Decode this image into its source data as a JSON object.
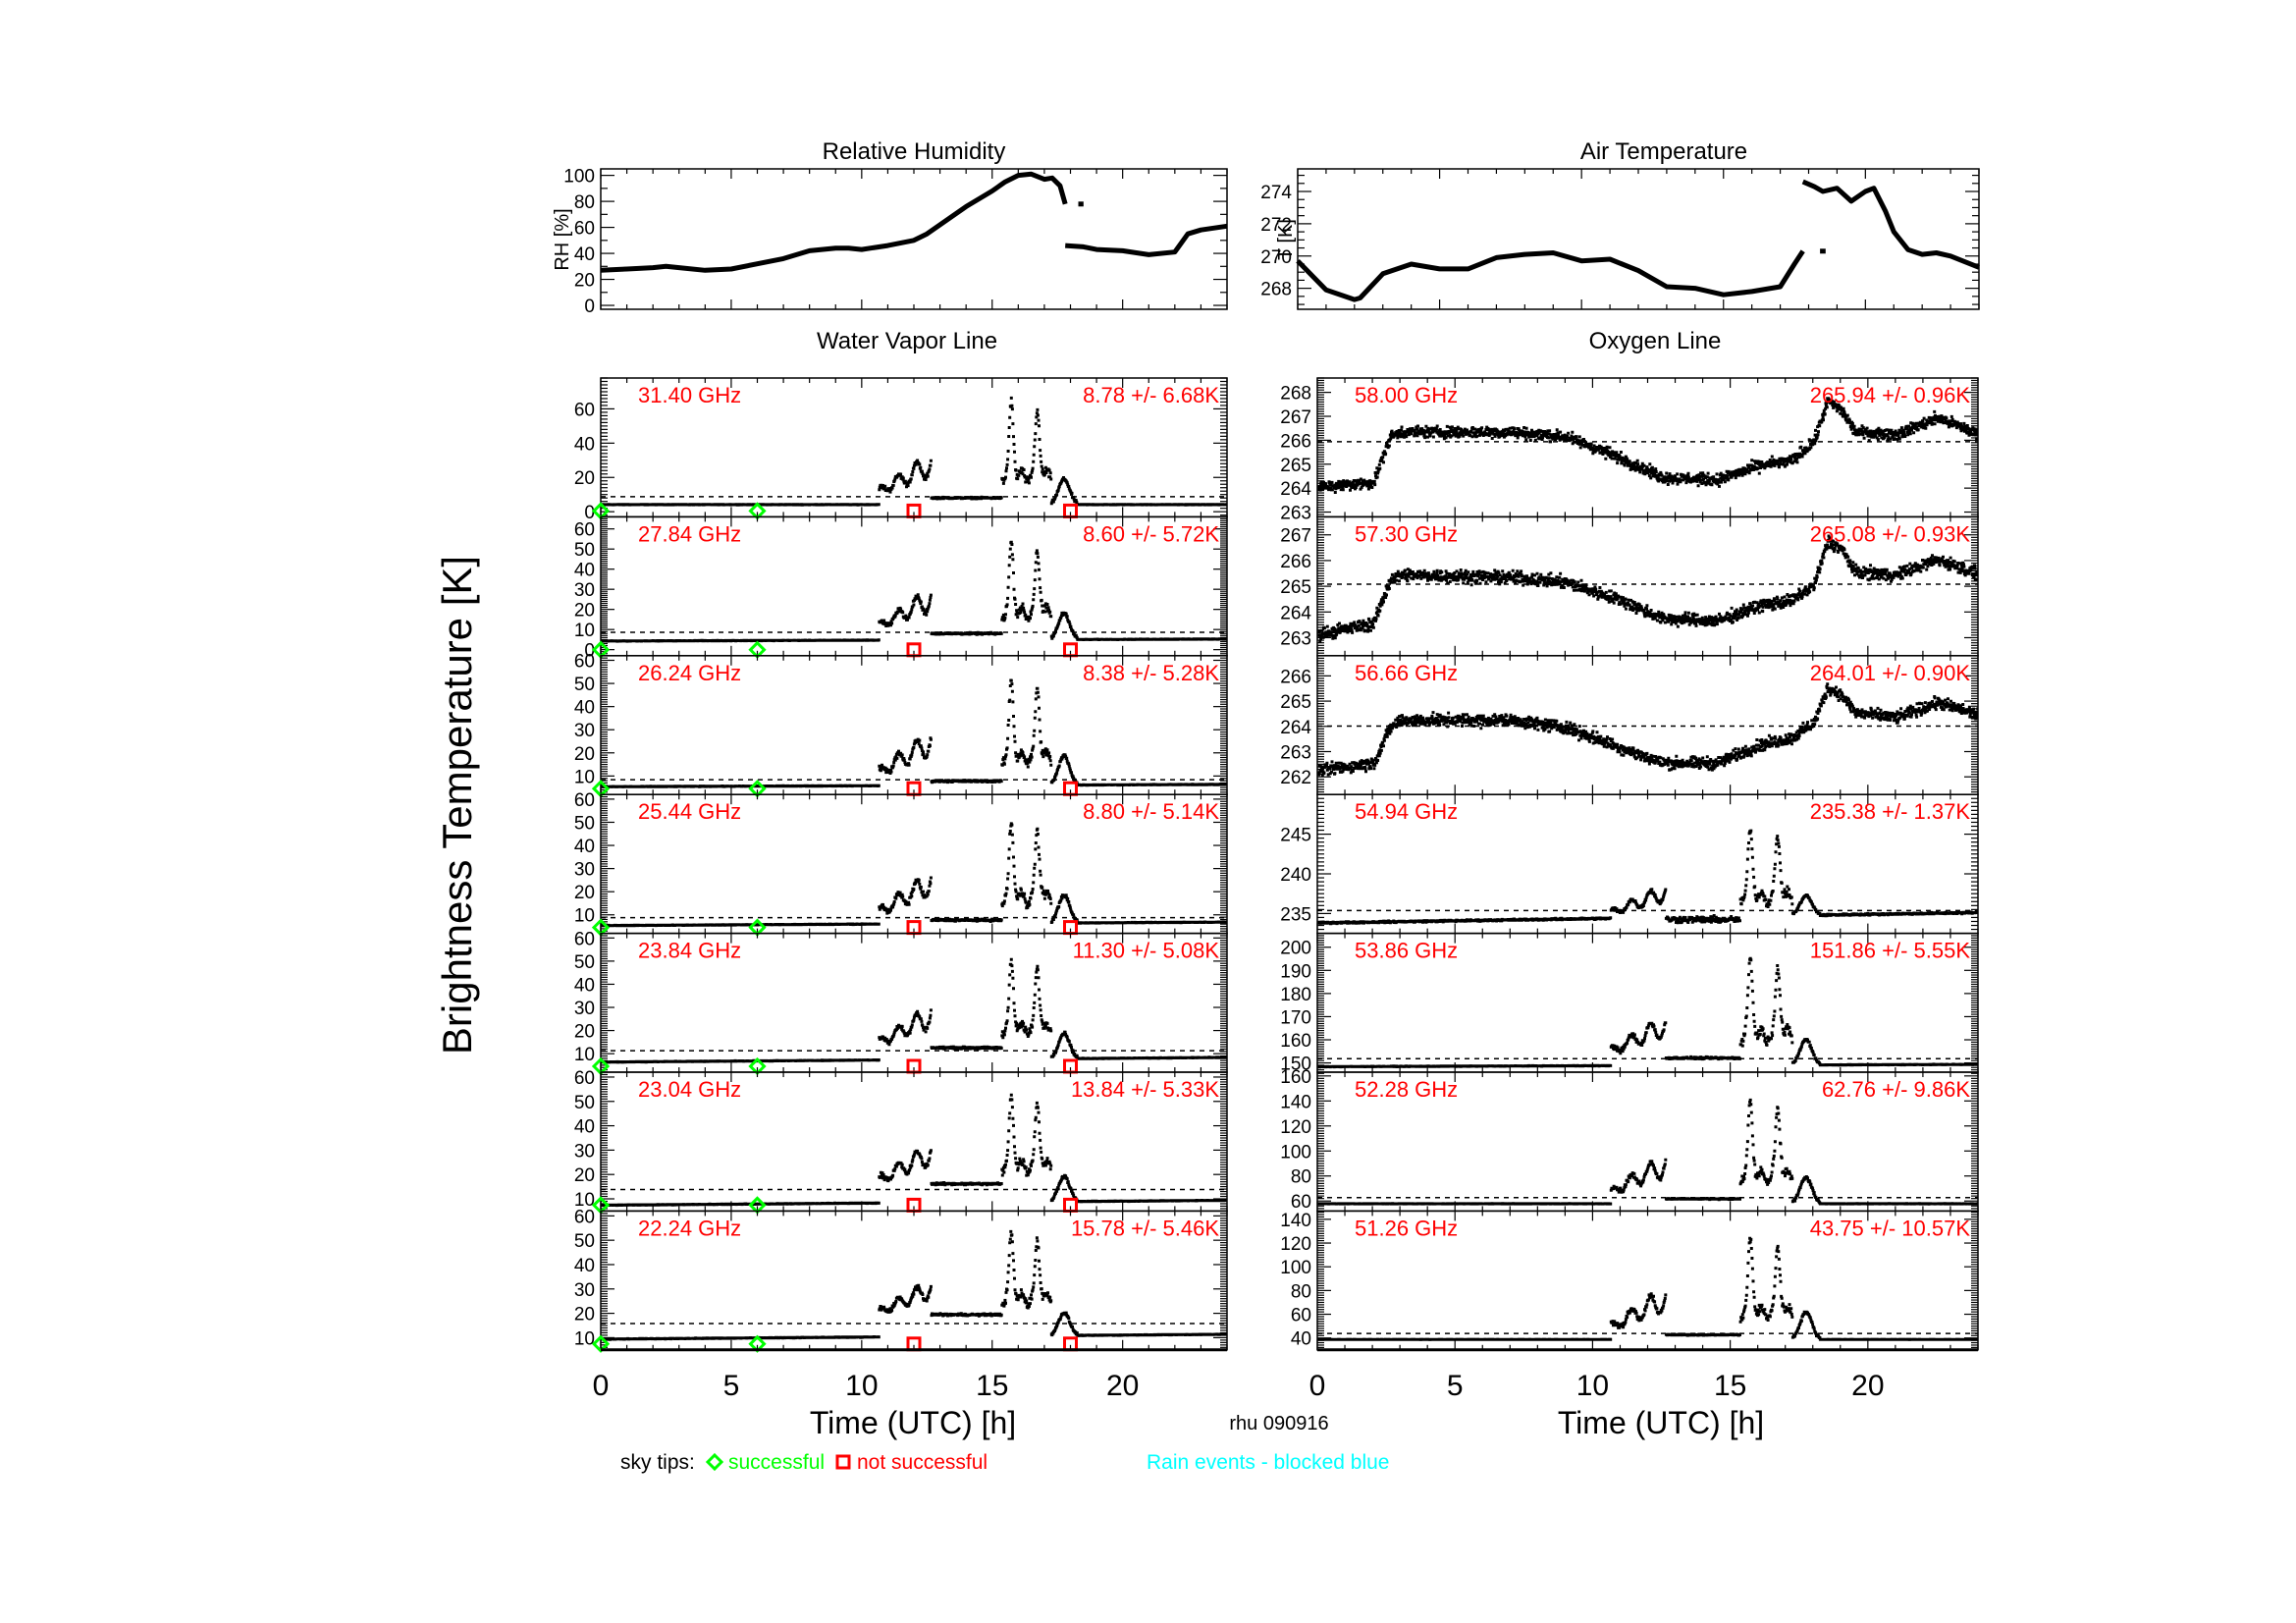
{
  "figure": {
    "ylabel_main": "Brightness Temperature [K]",
    "station_date": "rhu 090916",
    "legend": {
      "prefix": "sky tips:",
      "successful_label": "successful",
      "not_successful_label": "not successful",
      "rain_label": "Rain events - blocked blue"
    },
    "colors": {
      "annotation": "#ff0000",
      "successful": "#00ff00",
      "not_successful": "#ff0000",
      "rain": "#00ffff",
      "data": "#000000"
    }
  },
  "chart_data": [
    {
      "id": "rh",
      "type": "line",
      "title": "Relative Humidity",
      "ylabel": "RH [%]",
      "xlabel": "",
      "xlim": [
        0,
        24
      ],
      "ylim": [
        -3,
        105
      ],
      "yticks": [
        0,
        20,
        40,
        60,
        80,
        100
      ],
      "x": [
        0,
        1,
        2,
        2.5,
        3,
        4,
        5,
        6,
        7,
        8,
        9,
        9.5,
        10,
        11,
        12,
        12.5,
        13,
        14,
        15,
        15.5,
        16,
        16.5,
        17,
        17.3,
        17.6,
        17.8
      ],
      "y": [
        27,
        28,
        29,
        30,
        29,
        27,
        28,
        32,
        36,
        42,
        44,
        44,
        43,
        46,
        50,
        55,
        62,
        76,
        88,
        95,
        100,
        101,
        97,
        98,
        92,
        78
      ],
      "segments": [
        {
          "x": [
            18.3,
            18.5
          ],
          "y": [
            78,
            78
          ]
        },
        {
          "x": [
            17.8,
            18.5,
            19,
            20,
            21,
            22,
            22.5,
            23,
            24
          ],
          "y": [
            46,
            45,
            43,
            42,
            39,
            41,
            55,
            58,
            61
          ]
        }
      ]
    },
    {
      "id": "airtemp",
      "type": "line",
      "title": "Air Temperature",
      "ylabel": "T [K]",
      "xlabel": "",
      "xlim": [
        0,
        24
      ],
      "ylim": [
        266.7,
        275.4
      ],
      "yticks": [
        268,
        270,
        272,
        274
      ],
      "x": [
        0,
        1,
        2,
        2.2,
        3,
        4,
        5,
        6,
        7,
        8,
        9,
        10,
        11,
        12,
        13,
        14,
        15,
        16,
        17,
        17.5,
        17.8
      ],
      "y": [
        269.7,
        267.9,
        267.3,
        267.4,
        268.9,
        269.5,
        269.2,
        269.2,
        269.9,
        270.1,
        270.2,
        269.7,
        269.8,
        269.1,
        268.1,
        268.0,
        267.6,
        267.8,
        268.1,
        269.5,
        270.3
      ],
      "segments": [
        {
          "x": [
            18.4,
            18.6
          ],
          "y": [
            270.3,
            270.3
          ]
        },
        {
          "x": [
            17.8,
            18.2,
            18.5,
            19,
            19.5,
            20,
            20.3,
            20.7,
            21,
            21.5,
            22,
            22.5,
            23,
            24
          ],
          "y": [
            274.6,
            274.3,
            274.0,
            274.2,
            273.4,
            274.0,
            274.2,
            272.8,
            271.5,
            270.4,
            270.1,
            270.2,
            270.0,
            269.3
          ]
        }
      ]
    },
    {
      "id": "water-vapor",
      "type": "scatter",
      "title": "Water Vapor Line",
      "xlabel": "Time (UTC) [h]",
      "xlim": [
        0,
        24
      ],
      "xticks": [
        0,
        5,
        10,
        15,
        20
      ],
      "sky_tips": {
        "successful_x": [
          0,
          6
        ],
        "not_successful_x": [
          12,
          18
        ]
      },
      "panels": [
        {
          "freq": "31.40 GHz",
          "stat": "8.78 +/-  6.68K",
          "mean": 8.78,
          "std": 6.68,
          "ylim": [
            -3,
            78
          ],
          "yticks": [
            0,
            20,
            40,
            60
          ],
          "base_start": 5,
          "base_end": 5,
          "storm1_peak": 35,
          "storm2_peak": 75,
          "plateau": 8
        },
        {
          "freq": "27.84 GHz",
          "stat": "8.60 +/-  5.72K",
          "mean": 8.6,
          "std": 5.72,
          "ylim": [
            -3,
            66
          ],
          "yticks": [
            0,
            10,
            20,
            30,
            40,
            50,
            60
          ],
          "base_start": 5,
          "base_end": 6,
          "storm1_peak": 32,
          "storm2_peak": 62,
          "plateau": 8
        },
        {
          "freq": "26.24 GHz",
          "stat": "8.38 +/-  5.28K",
          "mean": 8.38,
          "std": 5.28,
          "ylim": [
            2,
            62
          ],
          "yticks": [
            10,
            20,
            30,
            40,
            50,
            60
          ],
          "base_start": 6,
          "base_end": 7,
          "storm1_peak": 31,
          "storm2_peak": 60,
          "plateau": 8
        },
        {
          "freq": "25.44 GHz",
          "stat": "8.80 +/-  5.14K",
          "mean": 8.8,
          "std": 5.14,
          "ylim": [
            2,
            62
          ],
          "yticks": [
            10,
            20,
            30,
            40,
            50,
            60
          ],
          "base_start": 6,
          "base_end": 7.5,
          "storm1_peak": 30,
          "storm2_peak": 58,
          "plateau": 8
        },
        {
          "freq": "23.84 GHz",
          "stat": "11.30 +/-  5.08K",
          "mean": 11.3,
          "std": 5.08,
          "ylim": [
            2,
            62
          ],
          "yticks": [
            10,
            20,
            30,
            40,
            50,
            60
          ],
          "base_start": 7,
          "base_end": 9,
          "storm1_peak": 32,
          "storm2_peak": 58,
          "plateau": 12
        },
        {
          "freq": "23.04 GHz",
          "stat": "13.84 +/-  5.33K",
          "mean": 13.84,
          "std": 5.33,
          "ylim": [
            5,
            62
          ],
          "yticks": [
            10,
            20,
            30,
            40,
            50,
            60
          ],
          "base_start": 8,
          "base_end": 10,
          "storm1_peak": 34,
          "storm2_peak": 60,
          "plateau": 15
        },
        {
          "freq": "22.24 GHz",
          "stat": "15.78 +/-  5.46K",
          "mean": 15.78,
          "std": 5.46,
          "ylim": [
            5,
            62
          ],
          "yticks": [
            10,
            20,
            30,
            40,
            50,
            60
          ],
          "base_start": 10,
          "base_end": 12,
          "storm1_peak": 35,
          "storm2_peak": 60,
          "plateau": 18
        }
      ]
    },
    {
      "id": "oxygen",
      "type": "scatter",
      "title": "Oxygen Line",
      "xlabel": "Time (UTC) [h]",
      "xlim": [
        0,
        24
      ],
      "xticks": [
        0,
        5,
        10,
        15,
        20
      ],
      "panels": [
        {
          "freq": "58.00 GHz",
          "stat": "265.94 +/-  0.96K",
          "mean": 265.94,
          "std": 0.96,
          "ylim": [
            262.8,
            268.6
          ],
          "yticks": [
            263,
            264,
            265,
            266,
            267,
            268
          ],
          "shape": "smooth",
          "profile": [
            [
              0,
              264.1
            ],
            [
              2,
              264.3
            ],
            [
              2.6,
              266.2
            ],
            [
              3,
              266.4
            ],
            [
              7,
              266.4
            ],
            [
              9,
              266.2
            ],
            [
              11,
              265.3
            ],
            [
              12.5,
              264.5
            ],
            [
              14.5,
              264.4
            ],
            [
              16,
              265.0
            ],
            [
              17.2,
              265.2
            ],
            [
              18,
              266.0
            ],
            [
              18.5,
              267.7
            ],
            [
              19,
              267.3
            ],
            [
              19.5,
              266.4
            ],
            [
              21,
              266.3
            ],
            [
              22.5,
              267.0
            ],
            [
              24,
              266.3
            ]
          ]
        },
        {
          "freq": "57.30 GHz",
          "stat": "265.08 +/-  0.93K",
          "mean": 265.08,
          "std": 0.93,
          "ylim": [
            262.3,
            267.7
          ],
          "yticks": [
            263,
            264,
            265,
            266,
            267
          ],
          "shape": "smooth",
          "profile": [
            [
              0,
              263.2
            ],
            [
              2,
              263.6
            ],
            [
              2.6,
              265.3
            ],
            [
              3,
              265.5
            ],
            [
              7,
              265.4
            ],
            [
              9,
              265.2
            ],
            [
              11,
              264.5
            ],
            [
              12.5,
              263.8
            ],
            [
              14.5,
              263.7
            ],
            [
              16,
              264.3
            ],
            [
              17.2,
              264.5
            ],
            [
              18,
              265.1
            ],
            [
              18.5,
              266.8
            ],
            [
              19,
              266.5
            ],
            [
              19.5,
              265.6
            ],
            [
              21,
              265.5
            ],
            [
              22.5,
              266.1
            ],
            [
              24,
              265.5
            ]
          ]
        },
        {
          "freq": "56.66 GHz",
          "stat": "264.01 +/-  0.90K",
          "mean": 264.01,
          "std": 0.9,
          "ylim": [
            261.3,
            266.8
          ],
          "yticks": [
            262,
            263,
            264,
            265,
            266
          ],
          "shape": "smooth",
          "profile": [
            [
              0,
              262.3
            ],
            [
              2,
              262.6
            ],
            [
              2.6,
              264.0
            ],
            [
              3,
              264.3
            ],
            [
              7,
              264.3
            ],
            [
              9,
              264.0
            ],
            [
              11,
              263.2
            ],
            [
              12.5,
              262.6
            ],
            [
              14.5,
              262.6
            ],
            [
              16,
              263.3
            ],
            [
              17.2,
              263.6
            ],
            [
              18,
              264.2
            ],
            [
              18.5,
              265.6
            ],
            [
              19,
              265.3
            ],
            [
              19.5,
              264.6
            ],
            [
              21,
              264.4
            ],
            [
              22.5,
              265.0
            ],
            [
              24,
              264.5
            ]
          ]
        },
        {
          "freq": "54.94 GHz",
          "stat": "235.38 +/-  1.37K",
          "mean": 235.38,
          "std": 1.37,
          "ylim": [
            232.5,
            250
          ],
          "yticks": [
            235,
            240,
            245
          ],
          "shape": "storm",
          "base_start": 234,
          "base_end": 235.3,
          "storm1_peak": 239,
          "storm2_peak": 248,
          "plateau": 234.5
        },
        {
          "freq": "53.86 GHz",
          "stat": "151.86 +/-  5.55K",
          "mean": 151.86,
          "std": 5.55,
          "ylim": [
            146,
            206
          ],
          "yticks": [
            150,
            160,
            170,
            180,
            190,
            200
          ],
          "shape": "storm",
          "base_start": 149,
          "base_end": 150,
          "storm1_peak": 172,
          "storm2_peak": 204,
          "plateau": 152
        },
        {
          "freq": "52.28 GHz",
          "stat": "62.76 +/-  9.86K",
          "mean": 62.76,
          "std": 9.86,
          "ylim": [
            52,
            163
          ],
          "yticks": [
            60,
            80,
            100,
            120,
            140,
            160
          ],
          "shape": "storm",
          "base_start": 59,
          "base_end": 59,
          "storm1_peak": 100,
          "storm2_peak": 155,
          "plateau": 62
        },
        {
          "freq": "51.26 GHz",
          "stat": "43.75 +/- 10.57K",
          "mean": 43.75,
          "std": 10.57,
          "ylim": [
            30,
            147
          ],
          "yticks": [
            40,
            60,
            80,
            100,
            120,
            140
          ],
          "shape": "storm",
          "base_start": 40,
          "base_end": 40,
          "storm1_peak": 85,
          "storm2_peak": 140,
          "plateau": 43
        }
      ]
    }
  ]
}
